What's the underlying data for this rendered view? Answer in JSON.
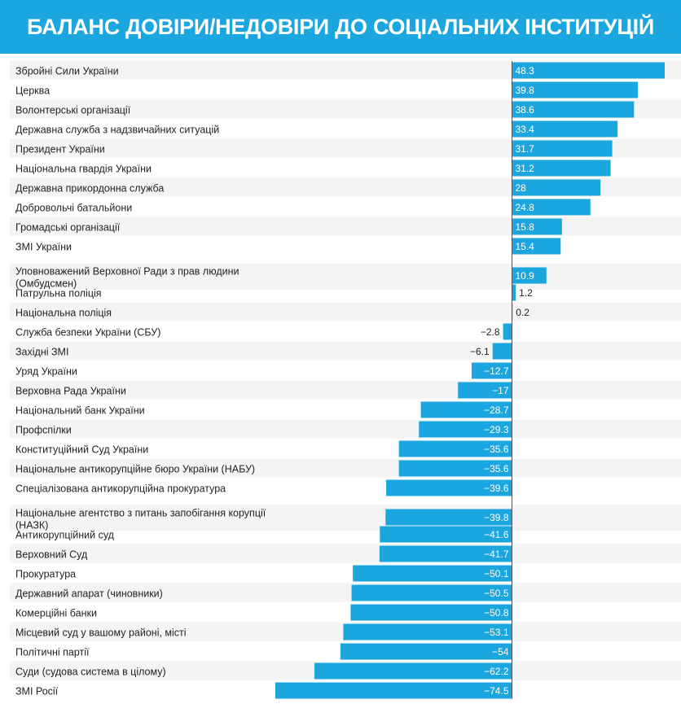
{
  "header": {
    "title": "БАЛАНС ДОВІРИ/НЕДОВІРИ ДО СОЦІАЛЬНИХ ІНСТИТУЦІЙ"
  },
  "colors": {
    "header_bg": "#1ca6e0",
    "bar": "#1ca6e0",
    "row_stripe": "#f4f4f4",
    "zero_line": "#555555"
  },
  "chart_data": {
    "type": "bar",
    "orientation": "horizontal",
    "title": "БАЛАНС ДОВІРИ/НЕДОВІРИ ДО СОЦІАЛЬНИХ ІНСТИТУЦІЙ",
    "xlim": [
      -74.5,
      48.3
    ],
    "grid": false,
    "legend": "none",
    "categories": [
      [
        "Збройні Сили України"
      ],
      [
        "Церква"
      ],
      [
        "Волонтерські організації"
      ],
      [
        "Державна служба з надзвичайних ситуацій"
      ],
      [
        "Президент України"
      ],
      [
        "Національна гвардія України"
      ],
      [
        "Державна прикордонна служба"
      ],
      [
        "Добровольчі батальйони"
      ],
      [
        "Громадські організації"
      ],
      [
        "ЗМІ України"
      ],
      [
        "Уповноважений Верховної Ради з прав людини",
        "(Омбудсмен)"
      ],
      [
        "Патрульна поліція"
      ],
      [
        "Національна поліція"
      ],
      [
        "Служба безпеки України (СБУ)"
      ],
      [
        "Західні ЗМІ"
      ],
      [
        "Уряд України"
      ],
      [
        "Верховна Рада України"
      ],
      [
        "Національний банк України"
      ],
      [
        "Профспілки"
      ],
      [
        "Конституційний Суд України"
      ],
      [
        "Національне антикорупційне бюро України (НАБУ)"
      ],
      [
        "Спеціалізована антикорупційна прокуратура"
      ],
      [
        "Національне агентство з питань запобігання корупції",
        "(НАЗК)"
      ],
      [
        "Антикорупційний суд"
      ],
      [
        "Верховний Суд"
      ],
      [
        "Прокуратура"
      ],
      [
        "Державний апарат (чиновники)"
      ],
      [
        "Комерційні банки"
      ],
      [
        "Місцевий суд у вашому районі, місті"
      ],
      [
        "Політичні партії"
      ],
      [
        "Суди (судова система в цілому)"
      ],
      [
        "ЗМІ Росії"
      ]
    ],
    "values": [
      48.3,
      39.8,
      38.6,
      33.4,
      31.7,
      31.2,
      28,
      24.8,
      15.8,
      15.4,
      10.9,
      1.2,
      0.2,
      -2.8,
      -6.1,
      -12.7,
      -17,
      -28.7,
      -29.3,
      -35.6,
      -35.6,
      -39.6,
      -39.8,
      -41.6,
      -41.7,
      -50.1,
      -50.5,
      -50.8,
      -53.1,
      -54,
      -62.2,
      -74.5
    ],
    "value_labels": [
      "48.3",
      "39.8",
      "38.6",
      "33.4",
      "31.7",
      "31.2",
      "28",
      "24.8",
      "15.8",
      "15.4",
      "10.9",
      "1.2",
      "0.2",
      "−2.8",
      "−6.1",
      "−12.7",
      "−17",
      "−28.7",
      "−29.3",
      "−35.6",
      "−35.6",
      "−39.6",
      "−39.8",
      "−41.6",
      "−41.7",
      "−50.1",
      "−50.5",
      "−50.8",
      "−53.1",
      "−54",
      "−62.2",
      "−74.5"
    ]
  }
}
